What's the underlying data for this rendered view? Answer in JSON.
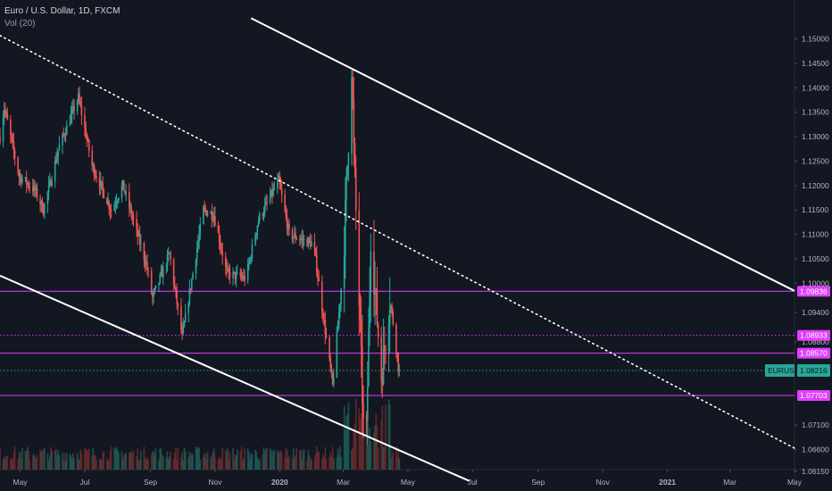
{
  "legend": {
    "symbol_line": "Euro / U.S. Dollar, 1D, FXCM",
    "volume_label": "Vol (20)"
  },
  "colors": {
    "background": "#131722",
    "up": "#26a69a",
    "down": "#ef5350",
    "magenta": "#e040fb",
    "teal_tag": "#26a69a",
    "trendline": "#ffffff",
    "axis_text": "#b2b5be"
  },
  "chart_data": {
    "type": "candlestick",
    "symbol": "EURUSD",
    "interval": "1D",
    "source": "FXCM",
    "last_price": 1.08216,
    "ylim": [
      1.0595,
      1.1545
    ],
    "y_ticks": [
      "1.15000",
      "1.14500",
      "1.14000",
      "1.13500",
      "1.13000",
      "1.12500",
      "1.12000",
      "1.11500",
      "1.11000",
      "1.10500",
      "1.10000",
      "1.09400",
      "1.08800",
      "1.07100",
      "1.06600",
      "1.06150"
    ],
    "x_ticks": [
      "May",
      "Jul",
      "Sep",
      "Nov",
      "2020",
      "Mar",
      "May",
      "Jul",
      "Sep",
      "Nov",
      "2021",
      "Mar",
      "May"
    ],
    "x_ticks_bold": [
      "2020",
      "2021"
    ],
    "horizontal_levels": [
      {
        "price": 1.09836,
        "label": "1.09836",
        "style": "solid",
        "color": "#e040fb"
      },
      {
        "price": 1.08933,
        "label": "1.08933",
        "style": "dotted",
        "color": "#e040fb"
      },
      {
        "price": 1.0857,
        "label": "1.08570",
        "style": "solid",
        "color": "#e040fb"
      },
      {
        "price": 1.07703,
        "label": "1.07703",
        "style": "solid",
        "color": "#e040fb"
      }
    ],
    "price_tag": {
      "symbol": "EURUSD",
      "price": "1.08216"
    },
    "trendlines": [
      {
        "style": "solid",
        "from": {
          "date": "2019-04-12",
          "price": 1.10155
        },
        "to": {
          "date": "2020-06-28",
          "price": 1.05955
        }
      },
      {
        "style": "solid",
        "from": {
          "date": "2019-12-05",
          "price": 1.15425
        },
        "to": {
          "date": "2021-05-01",
          "price": 1.09845
        }
      },
      {
        "style": "dotted",
        "from": {
          "date": "2019-04-12",
          "price": 1.1507
        },
        "to": {
          "date": "2021-05-01",
          "price": 1.06625
        }
      }
    ],
    "price_series": {
      "start": "2019-04-12",
      "end": "2020-04-23",
      "keyframes": [
        {
          "date": "2019-04-12",
          "close": 1.13
        },
        {
          "date": "2019-04-16",
          "close": 1.136
        },
        {
          "date": "2019-04-30",
          "close": 1.122
        },
        {
          "date": "2019-05-15",
          "close": 1.119
        },
        {
          "date": "2019-05-23",
          "close": 1.115
        },
        {
          "date": "2019-06-07",
          "close": 1.128
        },
        {
          "date": "2019-06-25",
          "close": 1.138
        },
        {
          "date": "2019-07-08",
          "close": 1.124
        },
        {
          "date": "2019-07-26",
          "close": 1.115
        },
        {
          "date": "2019-08-06",
          "close": 1.12
        },
        {
          "date": "2019-08-28",
          "close": 1.104
        },
        {
          "date": "2019-09-03",
          "close": 1.097
        },
        {
          "date": "2019-09-19",
          "close": 1.106
        },
        {
          "date": "2019-10-01",
          "close": 1.089
        },
        {
          "date": "2019-10-21",
          "close": 1.115
        },
        {
          "date": "2019-10-31",
          "close": 1.114
        },
        {
          "date": "2019-11-12",
          "close": 1.102
        },
        {
          "date": "2019-11-30",
          "close": 1.101
        },
        {
          "date": "2019-12-12",
          "close": 1.113
        },
        {
          "date": "2019-12-31",
          "close": 1.121
        },
        {
          "date": "2020-01-10",
          "close": 1.11
        },
        {
          "date": "2020-02-02",
          "close": 1.108
        },
        {
          "date": "2020-02-20",
          "close": 1.079
        },
        {
          "date": "2020-03-01",
          "close": 1.104
        },
        {
          "date": "2020-03-09",
          "close": 1.145
        },
        {
          "date": "2020-03-11",
          "close": 1.127
        },
        {
          "date": "2020-03-20",
          "close": 1.071
        },
        {
          "date": "2020-03-23",
          "close": 1.069
        },
        {
          "date": "2020-03-27",
          "close": 1.11
        },
        {
          "date": "2020-04-06",
          "close": 1.081
        },
        {
          "date": "2020-04-14",
          "close": 1.097
        },
        {
          "date": "2020-04-23",
          "close": 1.082
        }
      ]
    }
  }
}
